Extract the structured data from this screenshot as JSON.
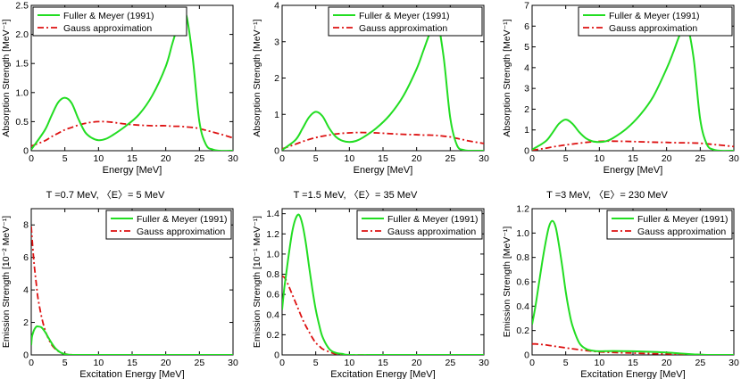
{
  "colors": {
    "fuller": "#22dd22",
    "gauss": "#dd1111",
    "axis": "#000000"
  },
  "legend": {
    "fuller": "Fuller & Meyer (1991)",
    "gauss": "Gauss approximation"
  },
  "middle_titles": [
    "T =0.7 MeV,  〈E〉= 5 MeV",
    "T =1.5 MeV,  〈E〉= 35 MeV",
    "T =3 MeV,  〈E〉= 230 MeV"
  ],
  "chart_data": [
    {
      "type": "line",
      "xlabel": "Energy [MeV]",
      "ylabel": "Absorption Strength [MeV⁻¹]",
      "xlim": [
        0,
        30
      ],
      "ylim": [
        0,
        2.5
      ],
      "xticks": [
        "0",
        "5",
        "10",
        "15",
        "20",
        "25",
        "30"
      ],
      "yticks": [
        "0",
        "0.5",
        "1.0",
        "1.5",
        "2.0",
        "2.5"
      ],
      "legend_position": "top-left",
      "grid": false,
      "x": [
        0,
        2,
        3,
        4,
        5,
        6,
        7,
        8,
        9,
        10,
        11,
        12,
        14,
        16,
        18,
        20,
        21,
        22,
        23,
        24,
        25,
        26,
        27,
        28,
        30
      ],
      "series": [
        {
          "name": "Fuller & Meyer (1991)",
          "style": "solid",
          "values": [
            0.02,
            0.35,
            0.6,
            0.83,
            0.91,
            0.82,
            0.55,
            0.32,
            0.22,
            0.18,
            0.2,
            0.26,
            0.42,
            0.62,
            0.95,
            1.45,
            1.85,
            2.2,
            2.35,
            1.6,
            0.5,
            0.1,
            0.02,
            0.0,
            0.0
          ]
        },
        {
          "name": "Gauss approximation",
          "style": "dashdot",
          "values": [
            0.08,
            0.17,
            0.24,
            0.3,
            0.36,
            0.4,
            0.44,
            0.47,
            0.49,
            0.5,
            0.5,
            0.49,
            0.46,
            0.44,
            0.43,
            0.43,
            0.42,
            0.42,
            0.41,
            0.4,
            0.38,
            0.35,
            0.32,
            0.29,
            0.22
          ]
        }
      ]
    },
    {
      "type": "line",
      "xlabel": "Energy [MeV]",
      "ylabel": "Absorption Strength [MeV⁻¹]",
      "xlim": [
        0,
        30
      ],
      "ylim": [
        0,
        4
      ],
      "xticks": [
        "0",
        "5",
        "10",
        "15",
        "20",
        "25",
        "30"
      ],
      "yticks": [
        "0",
        "1",
        "2",
        "3",
        "4"
      ],
      "legend_position": "top-right",
      "grid": false,
      "x": [
        0,
        2,
        3,
        4,
        5,
        6,
        7,
        8,
        9,
        10,
        11,
        12,
        14,
        16,
        18,
        20,
        21,
        22,
        23,
        24,
        25,
        26,
        27,
        28,
        30
      ],
      "series": [
        {
          "name": "Fuller & Meyer (1991)",
          "style": "solid",
          "values": [
            0.02,
            0.3,
            0.6,
            0.92,
            1.07,
            0.95,
            0.62,
            0.38,
            0.27,
            0.24,
            0.27,
            0.36,
            0.62,
            0.98,
            1.5,
            2.25,
            2.75,
            3.25,
            3.6,
            2.6,
            0.9,
            0.15,
            0.02,
            0.0,
            0.0
          ]
        },
        {
          "name": "Gauss approximation",
          "style": "dashdot",
          "values": [
            0.05,
            0.18,
            0.25,
            0.31,
            0.36,
            0.4,
            0.43,
            0.46,
            0.48,
            0.49,
            0.5,
            0.5,
            0.49,
            0.47,
            0.45,
            0.44,
            0.43,
            0.43,
            0.42,
            0.4,
            0.38,
            0.34,
            0.3,
            0.26,
            0.2
          ]
        }
      ]
    },
    {
      "type": "line",
      "xlabel": "Energy [MeV]",
      "ylabel": "Absorption Strength [MeV⁻¹]",
      "xlim": [
        0,
        30
      ],
      "ylim": [
        0,
        7
      ],
      "xticks": [
        "0",
        "5",
        "10",
        "15",
        "20",
        "25",
        "30"
      ],
      "yticks": [
        "0",
        "1",
        "2",
        "3",
        "4",
        "5",
        "6",
        "7"
      ],
      "legend_position": "top-right",
      "grid": false,
      "x": [
        0,
        2,
        3,
        4,
        5,
        6,
        7,
        8,
        9,
        10,
        11,
        12,
        14,
        16,
        18,
        20,
        21,
        22,
        23,
        24,
        25,
        26,
        27,
        28,
        30
      ],
      "series": [
        {
          "name": "Fuller & Meyer (1991)",
          "style": "solid",
          "values": [
            0.05,
            0.45,
            0.85,
            1.3,
            1.5,
            1.3,
            0.9,
            0.6,
            0.45,
            0.42,
            0.46,
            0.6,
            1.05,
            1.7,
            2.6,
            3.95,
            4.75,
            5.6,
            6.05,
            4.5,
            1.5,
            0.3,
            0.05,
            0.0,
            0.0
          ]
        },
        {
          "name": "Gauss approximation",
          "style": "dashdot",
          "values": [
            0.02,
            0.12,
            0.18,
            0.23,
            0.28,
            0.32,
            0.36,
            0.4,
            0.43,
            0.45,
            0.46,
            0.46,
            0.45,
            0.43,
            0.41,
            0.4,
            0.39,
            0.38,
            0.38,
            0.37,
            0.36,
            0.33,
            0.3,
            0.27,
            0.2
          ]
        }
      ]
    },
    {
      "type": "line",
      "xlabel": "Excitation Energy [MeV]",
      "ylabel": "Emission Strength [10⁻² MeV⁻¹]",
      "xlim": [
        0,
        30
      ],
      "ylim": [
        0,
        9
      ],
      "xticks": [
        "0",
        "5",
        "10",
        "15",
        "20",
        "25",
        "30"
      ],
      "yticks": [
        "0",
        "2",
        "4",
        "6",
        "8"
      ],
      "legend_position": "top-right",
      "grid": false,
      "x": [
        0,
        0.1,
        0.3,
        0.5,
        0.8,
        1,
        1.5,
        2,
        2.5,
        3,
        3.5,
        4,
        4.5,
        5,
        5.5,
        6,
        8,
        10,
        15,
        20,
        25,
        30
      ],
      "series": [
        {
          "name": "Fuller & Meyer (1991)",
          "style": "solid",
          "values": [
            0.6,
            1.1,
            1.4,
            1.6,
            1.75,
            1.75,
            1.7,
            1.45,
            1.1,
            0.75,
            0.45,
            0.25,
            0.12,
            0.05,
            0.02,
            0.0,
            0.0,
            0.0,
            0.0,
            0.0,
            0.0,
            0.0
          ]
        },
        {
          "name": "Gauss approximation",
          "style": "dashdot",
          "values": [
            7.9,
            7.3,
            6.2,
            5.3,
            4.2,
            3.5,
            2.4,
            1.6,
            1.05,
            0.65,
            0.4,
            0.23,
            0.12,
            0.06,
            0.03,
            0.01,
            0.0,
            0.0,
            0.0,
            0.0,
            0.0,
            0.0
          ]
        }
      ]
    },
    {
      "type": "line",
      "xlabel": "Excitation Energy [MeV]",
      "ylabel": "Emission Strength [10⁻¹ MeV⁻¹]",
      "xlim": [
        0,
        30
      ],
      "ylim": [
        0,
        1.45
      ],
      "xticks": [
        "0",
        "5",
        "10",
        "15",
        "20",
        "25",
        "30"
      ],
      "yticks": [
        "0",
        "0.2",
        "0.4",
        "0.6",
        "0.8",
        "1.0",
        "1.2",
        "1.4"
      ],
      "legend_position": "top-right",
      "grid": false,
      "x": [
        0,
        0.3,
        0.6,
        1,
        1.5,
        2,
        2.5,
        3,
        3.5,
        4,
        4.5,
        5,
        5.5,
        6,
        7,
        8,
        9,
        10,
        15,
        20,
        25,
        30
      ],
      "series": [
        {
          "name": "Fuller & Meyer (1991)",
          "style": "solid",
          "values": [
            0.45,
            0.65,
            0.8,
            1.0,
            1.22,
            1.35,
            1.39,
            1.3,
            1.12,
            0.88,
            0.65,
            0.45,
            0.3,
            0.18,
            0.06,
            0.02,
            0.01,
            0.0,
            0.0,
            0.0,
            0.0,
            0.0
          ]
        },
        {
          "name": "Gauss approximation",
          "style": "dashdot",
          "values": [
            0.78,
            0.77,
            0.74,
            0.68,
            0.6,
            0.52,
            0.44,
            0.36,
            0.29,
            0.23,
            0.17,
            0.12,
            0.09,
            0.06,
            0.03,
            0.01,
            0.0,
            0.0,
            0.0,
            0.0,
            0.0,
            0.0
          ]
        }
      ]
    },
    {
      "type": "line",
      "xlabel": "Excitation Energy [MeV]",
      "ylabel": "Emission Strength [MeV⁻¹]",
      "xlim": [
        0,
        30
      ],
      "ylim": [
        0,
        1.2
      ],
      "xticks": [
        "0",
        "5",
        "10",
        "15",
        "20",
        "25",
        "30"
      ],
      "yticks": [
        "0",
        "0.2",
        "0.4",
        "0.6",
        "0.8",
        "1.0",
        "1.2"
      ],
      "legend_position": "top-right",
      "grid": false,
      "x": [
        0,
        0.5,
        1,
        1.5,
        2,
        2.5,
        3,
        3.5,
        4,
        4.5,
        5,
        5.5,
        6,
        7,
        8,
        9,
        10,
        12,
        15,
        18,
        20,
        22,
        24,
        26,
        30
      ],
      "series": [
        {
          "name": "Fuller & Meyer (1991)",
          "style": "solid",
          "values": [
            0.25,
            0.4,
            0.58,
            0.76,
            0.92,
            1.05,
            1.1,
            1.05,
            0.9,
            0.72,
            0.52,
            0.36,
            0.24,
            0.1,
            0.05,
            0.035,
            0.03,
            0.032,
            0.03,
            0.025,
            0.02,
            0.012,
            0.005,
            0.0,
            0.0
          ]
        },
        {
          "name": "Gauss approximation",
          "style": "dashdot",
          "values": [
            0.09,
            0.09,
            0.088,
            0.085,
            0.082,
            0.078,
            0.074,
            0.07,
            0.066,
            0.062,
            0.058,
            0.054,
            0.05,
            0.043,
            0.036,
            0.03,
            0.025,
            0.02,
            0.015,
            0.01,
            0.008,
            0.005,
            0.003,
            0.001,
            0.0
          ]
        }
      ]
    }
  ]
}
